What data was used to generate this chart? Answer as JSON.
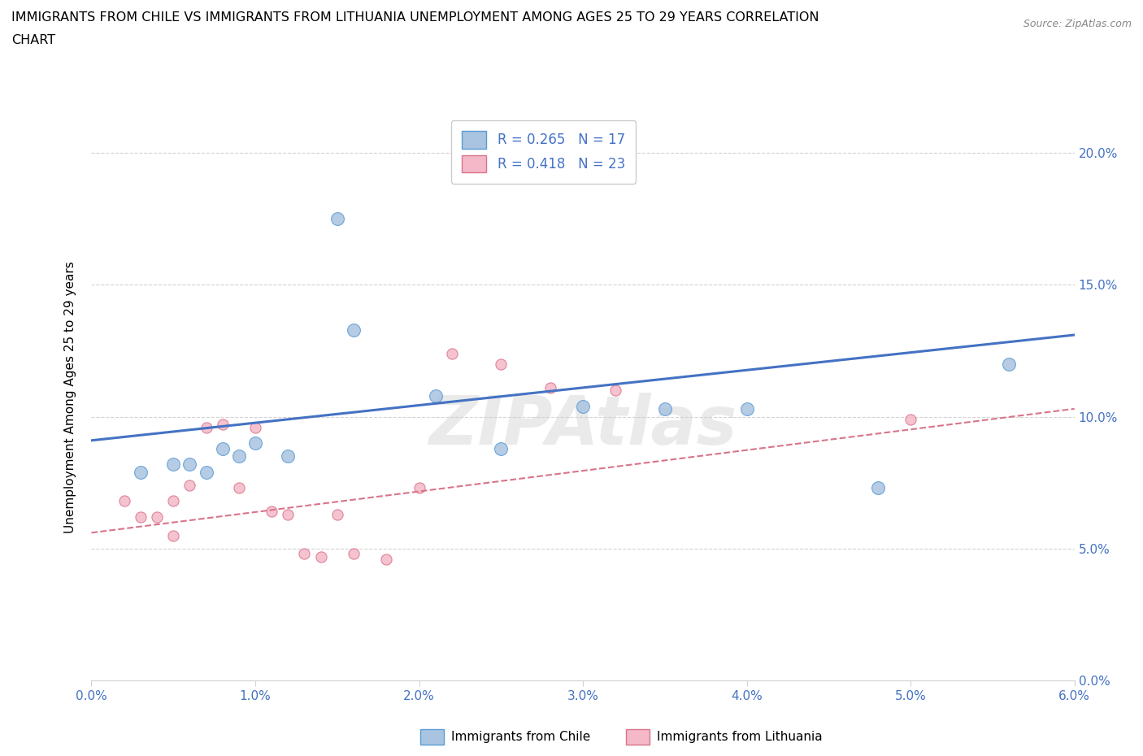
{
  "title_line1": "IMMIGRANTS FROM CHILE VS IMMIGRANTS FROM LITHUANIA UNEMPLOYMENT AMONG AGES 25 TO 29 YEARS CORRELATION",
  "title_line2": "CHART",
  "source": "Source: ZipAtlas.com",
  "ylabel": "Unemployment Among Ages 25 to 29 years",
  "xlim": [
    0.0,
    0.06
  ],
  "ylim": [
    0.0,
    0.215
  ],
  "xticks": [
    0.0,
    0.01,
    0.02,
    0.03,
    0.04,
    0.05,
    0.06
  ],
  "yticks": [
    0.0,
    0.05,
    0.1,
    0.15,
    0.2
  ],
  "chile_color": "#a8c4e0",
  "chile_edge_color": "#5b9bd5",
  "lithuania_color": "#f4b8c8",
  "lithuania_edge_color": "#d9748a",
  "chile_line_color": "#4472c4",
  "lithuania_line_color": "#d9748a",
  "watermark": "ZIPAtlas",
  "chile_scatter_x": [
    0.003,
    0.005,
    0.006,
    0.007,
    0.008,
    0.009,
    0.01,
    0.012,
    0.015,
    0.016,
    0.021,
    0.025,
    0.03,
    0.035,
    0.04,
    0.048,
    0.056
  ],
  "chile_scatter_y": [
    0.079,
    0.082,
    0.082,
    0.079,
    0.088,
    0.085,
    0.09,
    0.085,
    0.175,
    0.133,
    0.108,
    0.088,
    0.104,
    0.103,
    0.103,
    0.073,
    0.12
  ],
  "lithuania_scatter_x": [
    0.002,
    0.003,
    0.004,
    0.005,
    0.005,
    0.006,
    0.007,
    0.008,
    0.009,
    0.01,
    0.011,
    0.012,
    0.013,
    0.014,
    0.015,
    0.016,
    0.018,
    0.02,
    0.022,
    0.025,
    0.028,
    0.032,
    0.05
  ],
  "lithuania_scatter_y": [
    0.068,
    0.062,
    0.062,
    0.055,
    0.068,
    0.074,
    0.096,
    0.097,
    0.073,
    0.096,
    0.064,
    0.063,
    0.048,
    0.047,
    0.063,
    0.048,
    0.046,
    0.073,
    0.124,
    0.12,
    0.111,
    0.11,
    0.099
  ],
  "chile_trendline_x": [
    0.0,
    0.06
  ],
  "chile_trendline_y": [
    0.091,
    0.131
  ],
  "lithuania_trendline_x": [
    0.0,
    0.06
  ],
  "lithuania_trendline_y": [
    0.056,
    0.103
  ]
}
